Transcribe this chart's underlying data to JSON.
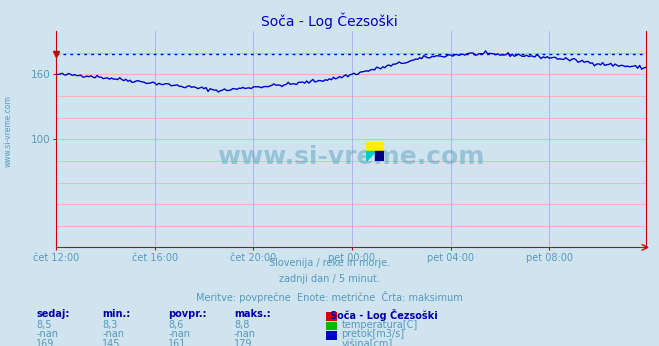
{
  "title": "Soča - Log Čezsoški",
  "bg_color": "#d0e4f0",
  "plot_bg_color": "#d0e4f0",
  "grid_color_h": "#ffaaaa",
  "grid_color_v": "#aaaaee",
  "title_color": "#0000cc",
  "axis_color": "#cc0000",
  "text_color": "#5599bb",
  "watermark_text": "www.si-vreme.com",
  "watermark_color": "#5599bb",
  "ylim": [
    0,
    200
  ],
  "ytick_vals": [
    100,
    160
  ],
  "ytick_labels": [
    "100",
    "160"
  ],
  "xtick_labels": [
    "čet 12:00",
    "čet 16:00",
    "čet 20:00",
    "pet 00:00",
    "pet 04:00",
    "pet 08:00"
  ],
  "xtick_positions": [
    0,
    48,
    96,
    144,
    192,
    240
  ],
  "n_points": 288,
  "visina_max": 179,
  "temp_color": "#cc0000",
  "pretok_color": "#00bb00",
  "visina_color": "#0000cc",
  "max_line_color": "#0000cc",
  "subtitle_lines": [
    "Slovenija / reke in morje.",
    "zadnji dan / 5 minut.",
    "Meritve: povprečne  Enote: metrične  Črta: maksimum"
  ],
  "legend_title": "Soča - Log Čezsoški",
  "legend_entries": [
    {
      "label": "temperatura[C]",
      "color": "#dd0000"
    },
    {
      "label": "pretok[m3/s]",
      "color": "#00bb00"
    },
    {
      "label": "višina[cm]",
      "color": "#0000cc"
    }
  ],
  "table_headers": [
    "sedaj:",
    "min.:",
    "povpr.:",
    "maks.:"
  ],
  "table_rows": [
    [
      "8,5",
      "8,3",
      "8,6",
      "8,8"
    ],
    [
      "-nan",
      "-nan",
      "-nan",
      "-nan"
    ],
    [
      "169",
      "145",
      "161",
      "179"
    ]
  ],
  "sidebar_text": "www.si-vreme.com",
  "sidebar_color": "#5599bb"
}
